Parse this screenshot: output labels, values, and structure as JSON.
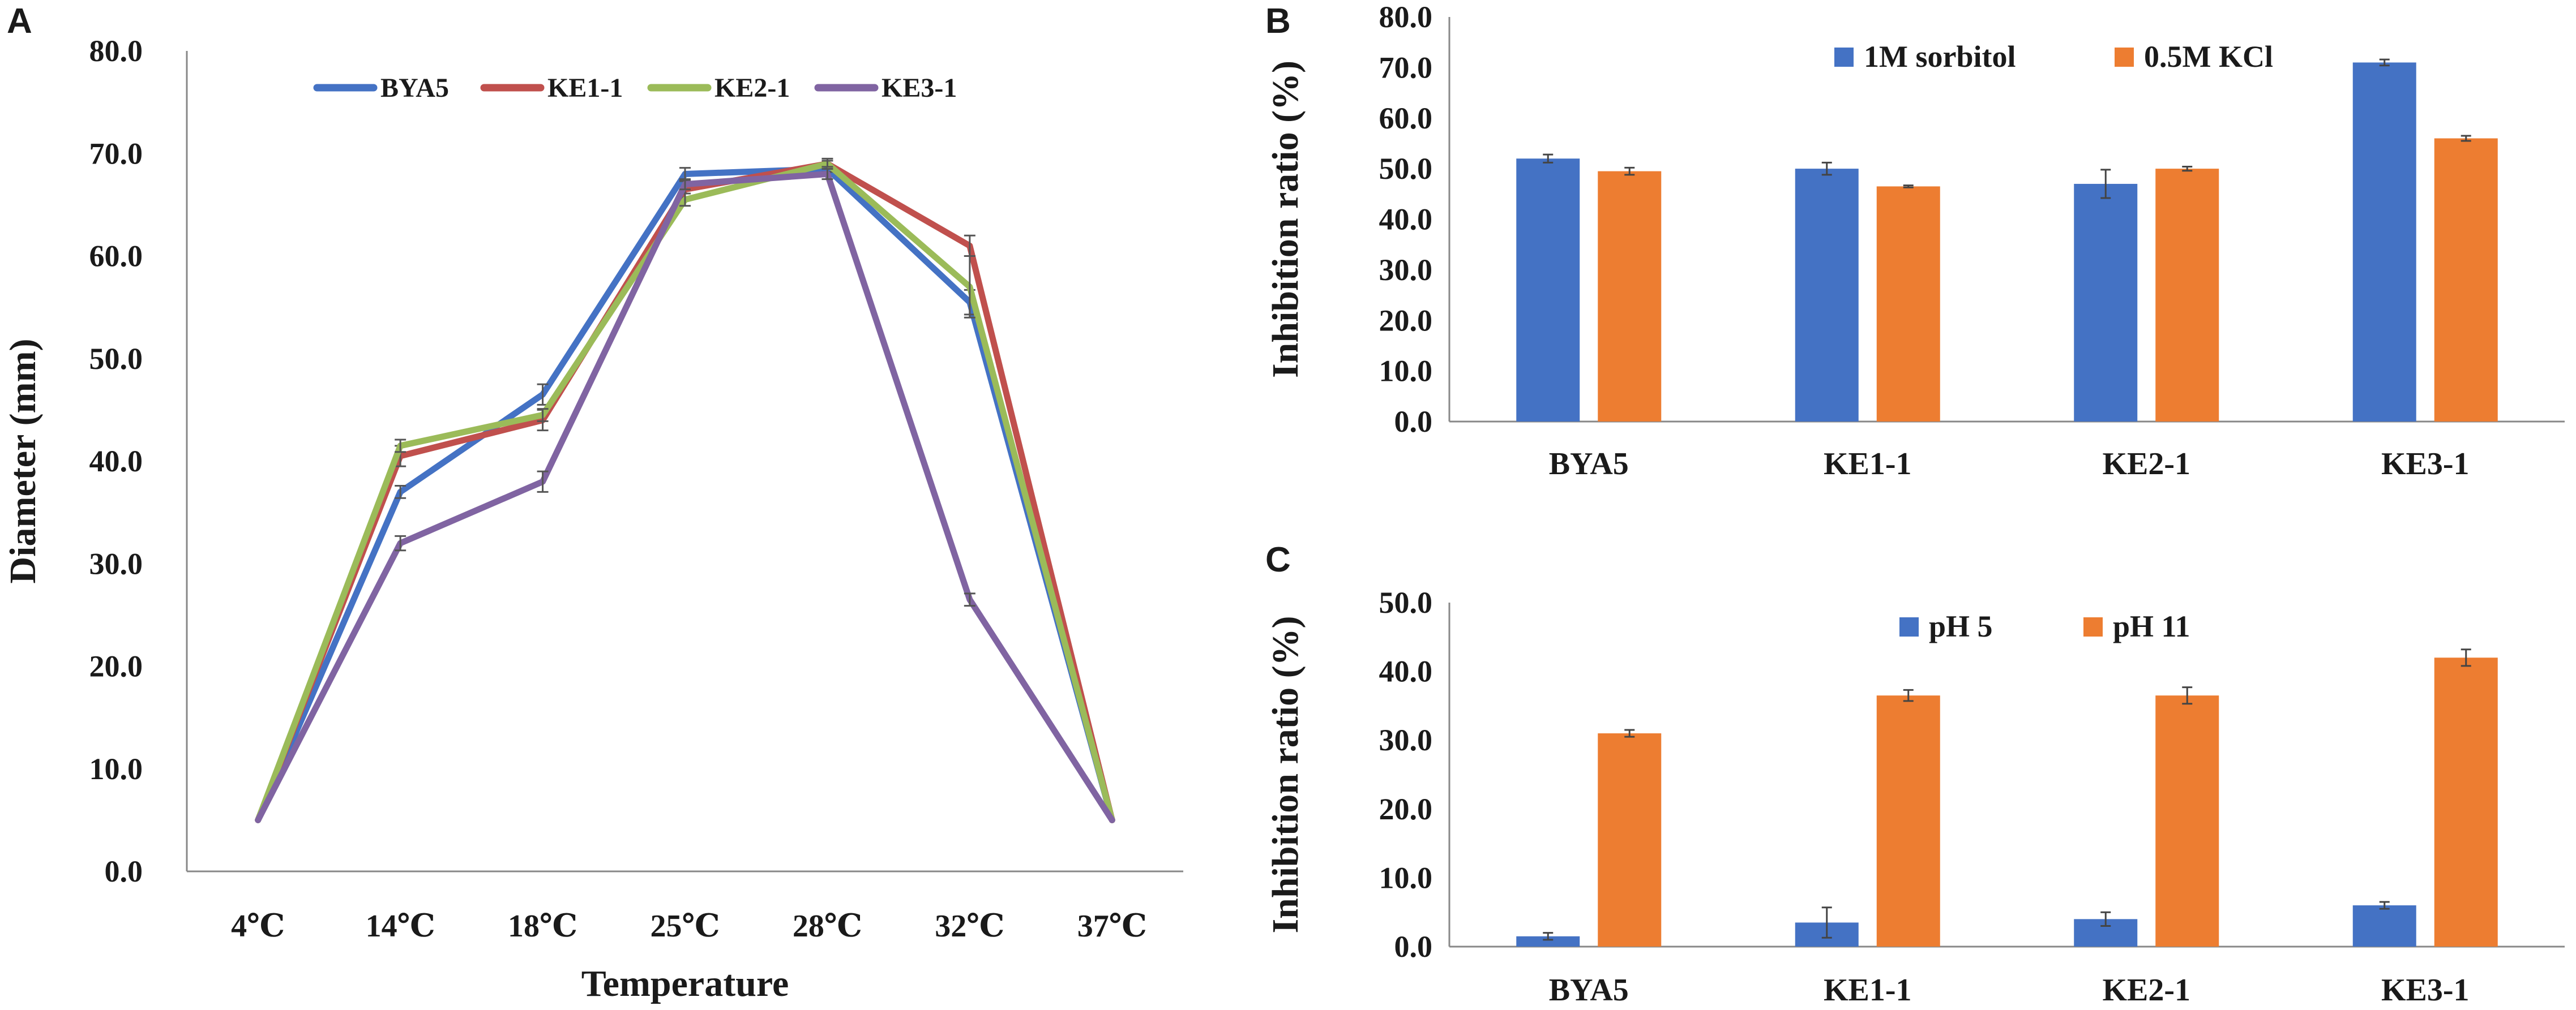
{
  "colors": {
    "blue": "#4472C4",
    "red": "#C0504D",
    "green": "#9BBB59",
    "purple": "#8064A2",
    "orange": "#ED7D31",
    "axis": "#888888",
    "text": "#1a1a1a"
  },
  "chart_data": [
    {
      "id": "A",
      "panel_label": "A",
      "type": "line",
      "title": "",
      "xlabel": "Temperature",
      "ylabel": "Diameter (mm)",
      "ylim": [
        0,
        80
      ],
      "y_ticks": [
        "0.0",
        "10.0",
        "20.0",
        "30.0",
        "40.0",
        "50.0",
        "60.0",
        "70.0",
        "80.0"
      ],
      "categories": [
        "4℃",
        "14℃",
        "18℃",
        "25℃",
        "28℃",
        "32℃",
        "37℃"
      ],
      "legend_position": "top-right",
      "series": [
        {
          "name": "BYA5",
          "color": "#4472C4",
          "values": [
            5,
            37,
            46.5,
            68,
            68.5,
            55.5,
            5
          ],
          "errors": [
            0,
            0.6,
            1.0,
            0.6,
            0.3,
            1.2,
            0
          ]
        },
        {
          "name": "KE1-1",
          "color": "#C0504D",
          "values": [
            5,
            40.5,
            44,
            66.5,
            69,
            61,
            5
          ],
          "errors": [
            0,
            1.0,
            1.0,
            0.8,
            0.5,
            1.0,
            0
          ]
        },
        {
          "name": "KE2-1",
          "color": "#9BBB59",
          "values": [
            5,
            41.5,
            44.5,
            65.5,
            69,
            57,
            5
          ],
          "errors": [
            0,
            0.6,
            0.6,
            0.6,
            0.3,
            3.0,
            0
          ]
        },
        {
          "name": "KE3-1",
          "color": "#8064A2",
          "values": [
            5,
            32,
            38,
            67,
            68,
            26.5,
            5
          ],
          "errors": [
            0,
            0.7,
            1.0,
            0.5,
            0.5,
            0.6,
            0
          ]
        }
      ]
    },
    {
      "id": "B",
      "panel_label": "B",
      "type": "bar",
      "title": "",
      "xlabel": "",
      "ylabel": "Inhibition ratio (%)",
      "ylim": [
        0,
        80
      ],
      "y_ticks": [
        "0.0",
        "10.0",
        "20.0",
        "30.0",
        "40.0",
        "50.0",
        "60.0",
        "70.0",
        "80.0"
      ],
      "categories": [
        "BYA5",
        "KE1-1",
        "KE2-1",
        "KE3-1"
      ],
      "legend_position": "top",
      "series": [
        {
          "name": "1M sorbitol",
          "color": "#4472C4",
          "values": [
            52,
            50,
            47,
            71
          ],
          "errors": [
            0.8,
            1.2,
            2.8,
            0.6
          ]
        },
        {
          "name": "0.5M KCl",
          "color": "#ED7D31",
          "values": [
            49.5,
            46.5,
            50,
            56
          ],
          "errors": [
            0.7,
            0.2,
            0.4,
            0.5
          ]
        }
      ]
    },
    {
      "id": "C",
      "panel_label": "C",
      "type": "bar",
      "title": "",
      "xlabel": "",
      "ylabel": "Inhibition ratio (%)",
      "ylim": [
        0,
        50
      ],
      "y_ticks": [
        "0.0",
        "10.0",
        "20.0",
        "30.0",
        "40.0",
        "50.0"
      ],
      "categories": [
        "BYA5",
        "KE1-1",
        "KE2-1",
        "KE3-1"
      ],
      "legend_position": "top",
      "series": [
        {
          "name": "pH 5",
          "color": "#4472C4",
          "values": [
            1.5,
            3.5,
            4,
            6
          ],
          "errors": [
            0.5,
            2.2,
            1.0,
            0.5
          ]
        },
        {
          "name": "pH 11",
          "color": "#ED7D31",
          "values": [
            31,
            36.5,
            36.5,
            42
          ],
          "errors": [
            0.5,
            0.8,
            1.2,
            1.2
          ]
        }
      ]
    }
  ]
}
